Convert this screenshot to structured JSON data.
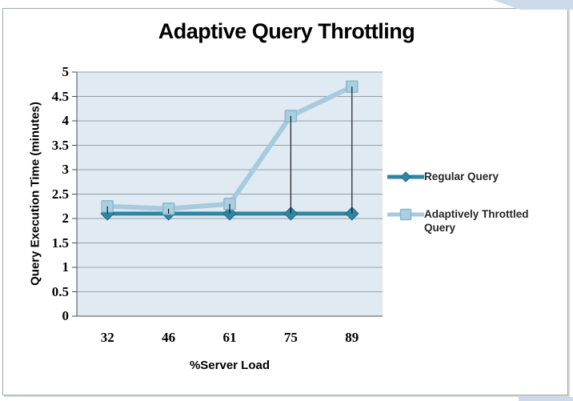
{
  "page": {
    "background": "#ffffff",
    "frame_border_color": "#a3a7aa",
    "corner_accent_color": "#ccd9ea"
  },
  "chart_data": {
    "type": "line",
    "title": "Adaptive Query Throttling",
    "xlabel": "%Server Load",
    "ylabel": "Query Execution Time (minutes)",
    "categories": [
      "32",
      "46",
      "61",
      "75",
      "89"
    ],
    "series": [
      {
        "name": "Regular Query",
        "color": "#2e86a4",
        "marker": "diamond",
        "marker_fill": "#2e86a4",
        "marker_edge": "#1f6885",
        "values": [
          2.1,
          2.1,
          2.1,
          2.1,
          2.1
        ]
      },
      {
        "name": "Adaptively Throttled Query",
        "color": "#a6cbdd",
        "marker": "square",
        "marker_fill": "#a9cfe0",
        "marker_edge": "#8cb8cd",
        "values": [
          2.25,
          2.2,
          2.3,
          4.1,
          4.7
        ]
      }
    ],
    "high_low_lines": true,
    "high_low_color": "#1a1a1a",
    "ylim": [
      0,
      5
    ],
    "ytick_step": 0.5,
    "yticks": [
      "5",
      "4.5",
      "4",
      "3.5",
      "3",
      "2.5",
      "2",
      "1.5",
      "1",
      "0.5",
      "0"
    ],
    "grid": true,
    "legend_position": "right",
    "plot_bg": "#dfeaf2",
    "gridline_color": "#9aa0a6",
    "axis_color": "#4d4d4d"
  }
}
